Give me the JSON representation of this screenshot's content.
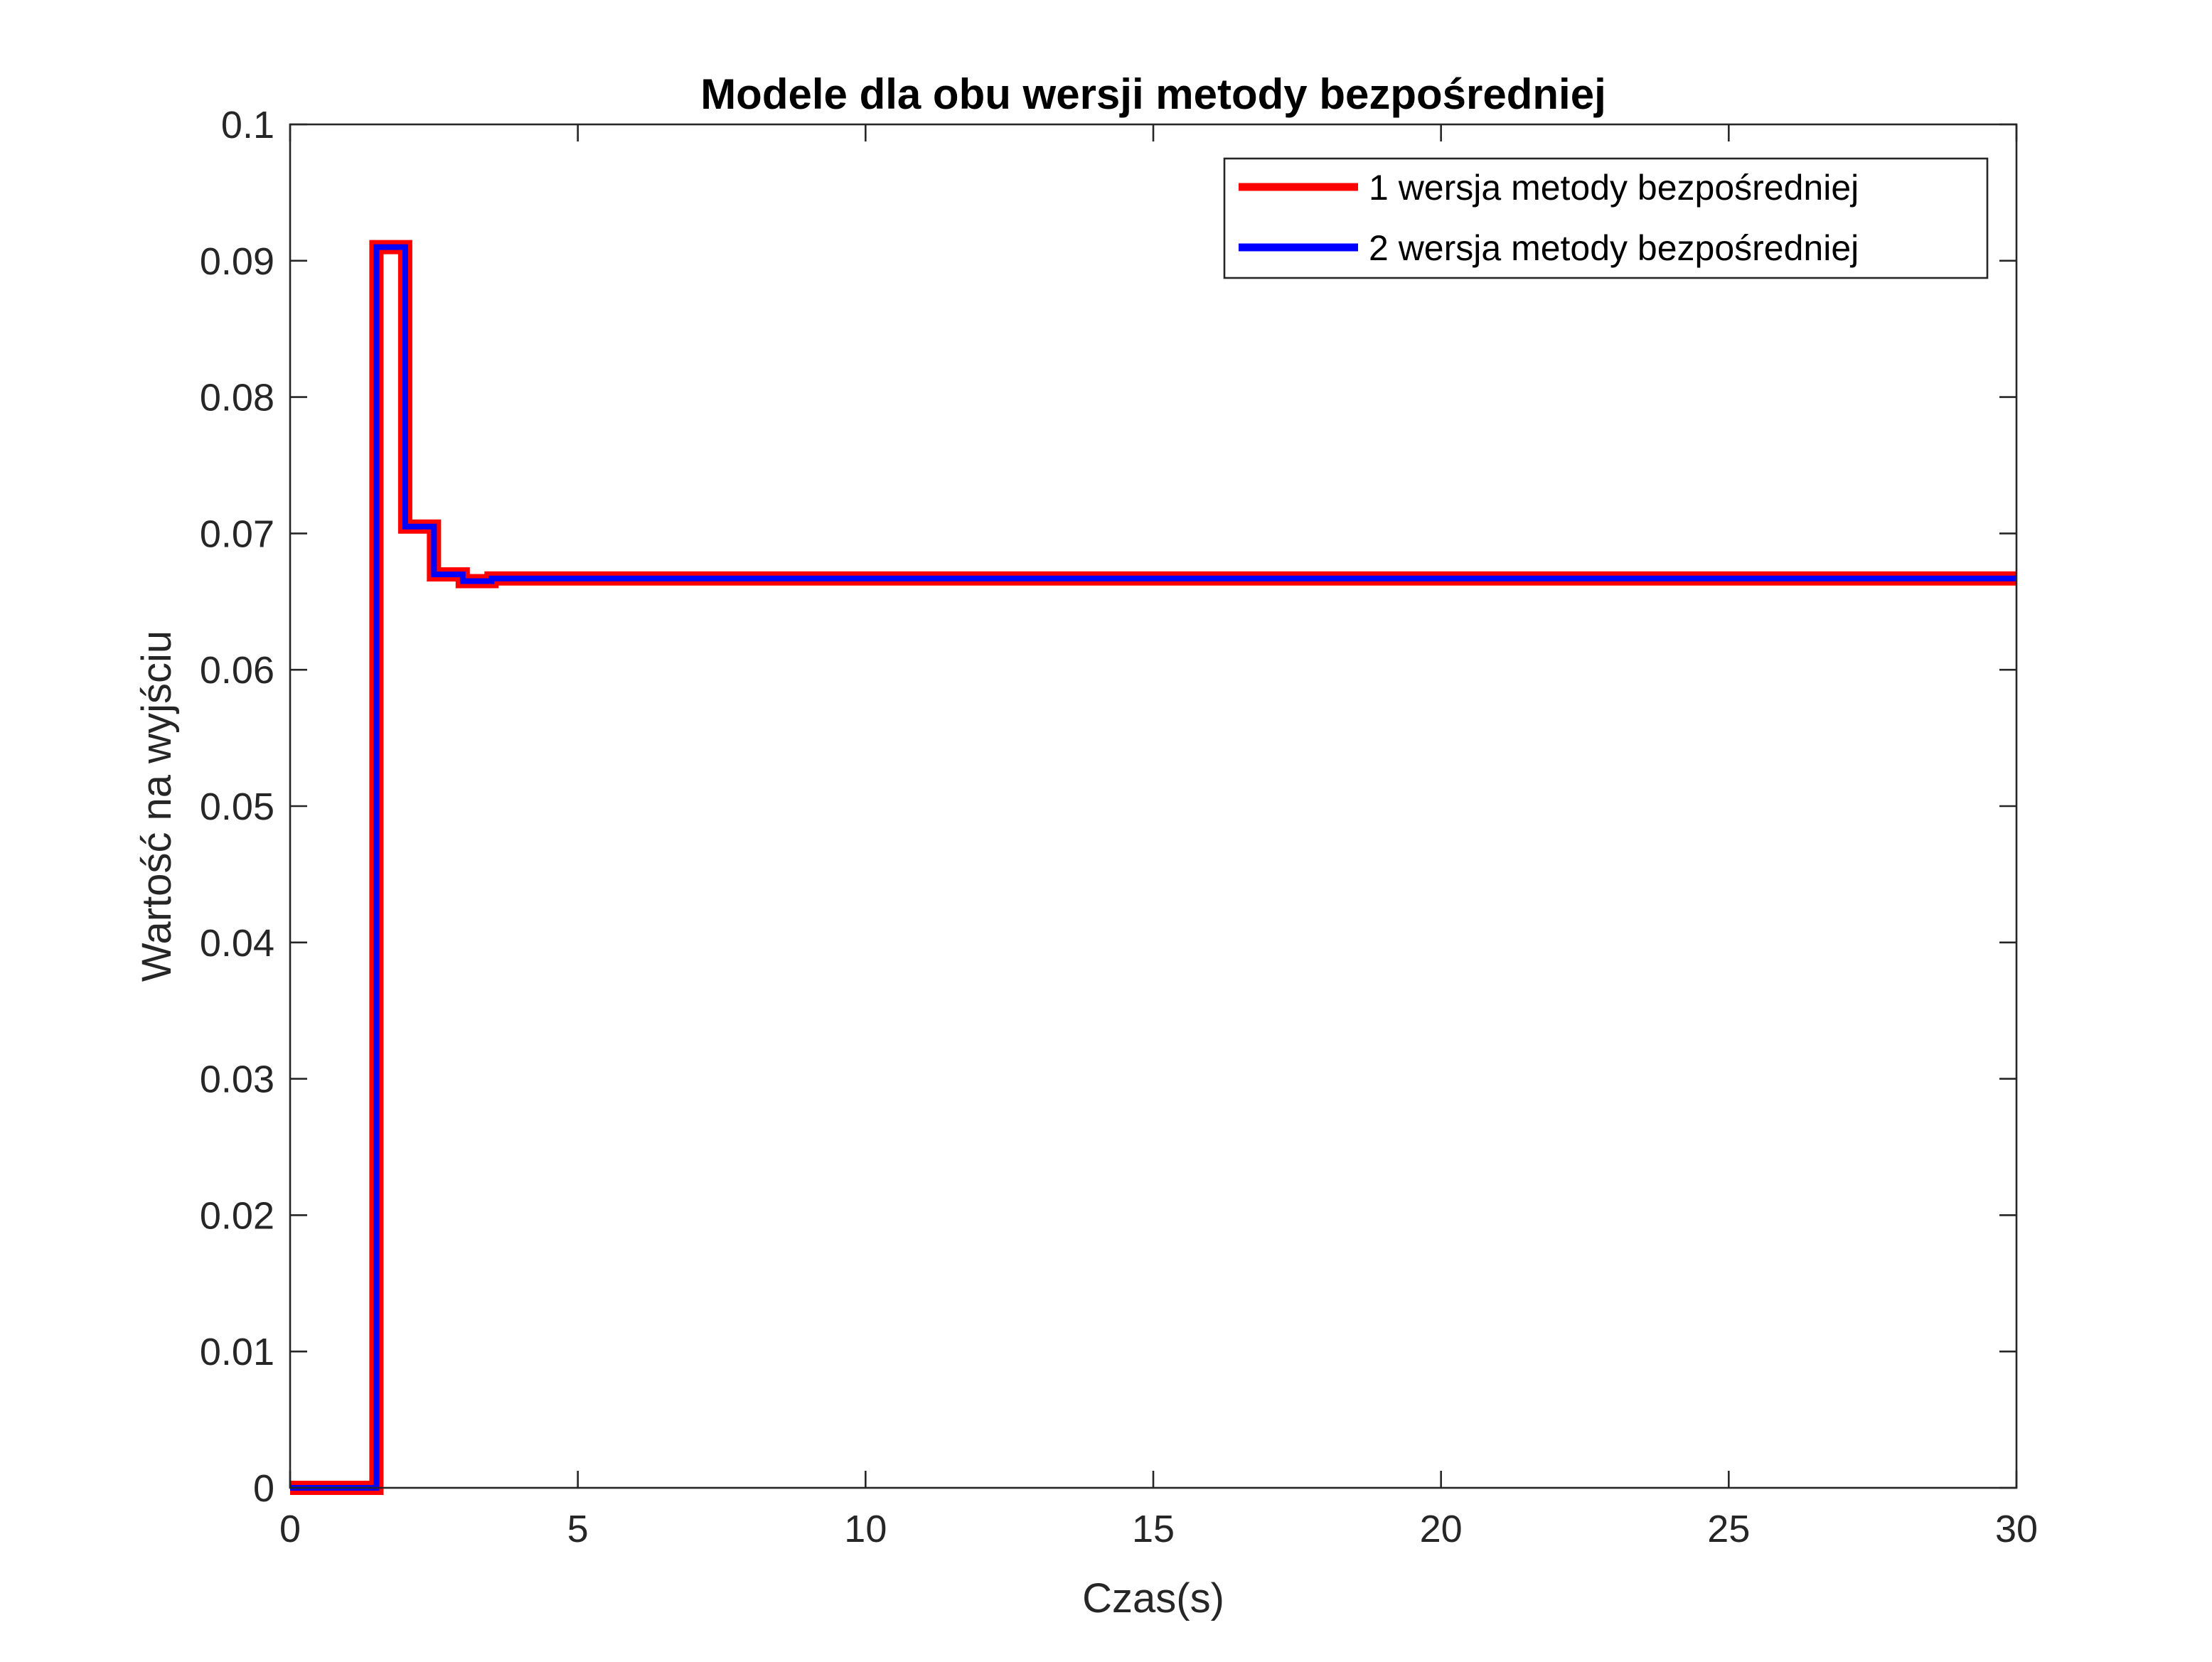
{
  "chart_data": {
    "type": "line",
    "title": "Modele dla obu wersji metody bezpośredniej",
    "xlabel": "Czas(s)",
    "ylabel": "Wartość na wyjściu",
    "xlim": [
      0,
      30
    ],
    "ylim": [
      0,
      0.1
    ],
    "xticks": [
      0,
      5,
      10,
      15,
      20,
      25,
      30
    ],
    "xtick_labels": [
      "0",
      "5",
      "10",
      "15",
      "20",
      "25",
      "30"
    ],
    "yticks": [
      0,
      0.01,
      0.02,
      0.03,
      0.04,
      0.05,
      0.06,
      0.07,
      0.08,
      0.09,
      0.1
    ],
    "ytick_labels": [
      "0",
      "0.01",
      "0.02",
      "0.03",
      "0.04",
      "0.05",
      "0.06",
      "0.07",
      "0.08",
      "0.09",
      "0.1"
    ],
    "grid": false,
    "legend_position": "top-right",
    "step_style": "stairs",
    "series": [
      {
        "name": "1 wersja metody bezpośredniej",
        "color": "#ff0000",
        "x": [
          0,
          1.5,
          2.0,
          2.5,
          3.0,
          3.5,
          4.0,
          30
        ],
        "y": [
          0,
          0.091,
          0.0705,
          0.067,
          0.0665,
          0.0667,
          0.0667,
          0.0667
        ]
      },
      {
        "name": "2 wersja metody bezpośredniej",
        "color": "#0000ff",
        "x": [
          0,
          1.5,
          2.0,
          2.5,
          3.0,
          3.5,
          4.0,
          30
        ],
        "y": [
          0,
          0.091,
          0.0705,
          0.067,
          0.0665,
          0.0667,
          0.0667,
          0.0667
        ]
      }
    ]
  }
}
